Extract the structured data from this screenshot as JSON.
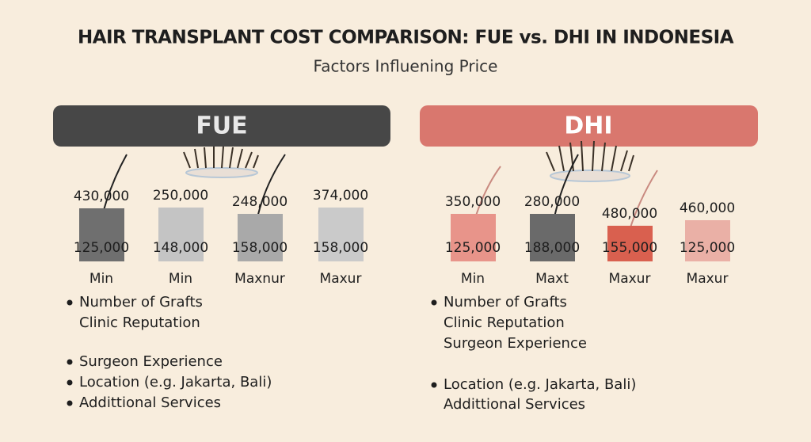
{
  "header": {
    "title": "HAIR TRANSPLANT COST COMPARISON: FUE vs. DHI IN INDONESIA",
    "subtitle": "Factors Influening Price"
  },
  "panels": [
    {
      "label": "FUE",
      "columns": [
        {
          "top": "430,000",
          "bottom": "125,000",
          "category": "Min",
          "color": "#6f6f6f"
        },
        {
          "top": "250,000",
          "bottom": "148,000",
          "category": "Min",
          "color": "#c4c4c4"
        },
        {
          "top": "248,000",
          "bottom": "158,000",
          "category": "Maxnur",
          "color": "#a9a9a9"
        },
        {
          "top": "374,000",
          "bottom": "158,000",
          "category": "Maxur",
          "color": "#cacaca"
        }
      ],
      "factors": [
        {
          "text": "Number of Grafts",
          "bullet": true
        },
        {
          "text": "Clinic Reputation",
          "bullet": false
        },
        {
          "text": "Surgeon Experience",
          "bullet": true
        },
        {
          "text": "Location (e.g. Jakarta, Bali)",
          "bullet": true
        },
        {
          "text": "Addittional Services",
          "bullet": true
        }
      ]
    },
    {
      "label": "DHI",
      "columns": [
        {
          "top": "350,000",
          "bottom": "125,000",
          "category": "Min",
          "color": "#e8948a"
        },
        {
          "top": "280,000",
          "bottom": "188,000",
          "category": "Maxt",
          "color": "#6a6a6a"
        },
        {
          "top": "480,000",
          "bottom": "155,000",
          "category": "Maxur",
          "color": "#d9604f"
        },
        {
          "top": "460,000",
          "bottom": "125,000",
          "category": "Maxur",
          "color": "#eab0a6"
        }
      ],
      "factors": [
        {
          "text": "Number of Grafts",
          "bullet": true
        },
        {
          "text": "Clinic Reputation",
          "bullet": false
        },
        {
          "text": "Surgeon Experience",
          "bullet": false
        },
        {
          "text": "Location (e.g. Jakarta, Bali)",
          "bullet": true
        },
        {
          "text": "Addittional Services",
          "bullet": false
        }
      ]
    }
  ]
}
